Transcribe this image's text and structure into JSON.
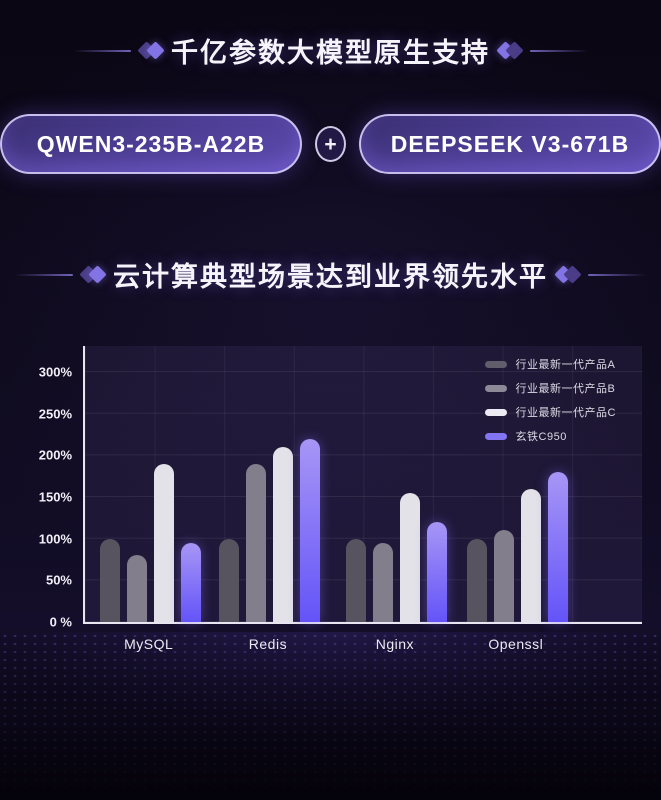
{
  "sections": {
    "models": {
      "title": "千亿参数大模型原生支持"
    },
    "cloud": {
      "title": "云计算典型场景达到业界领先水平"
    }
  },
  "badges": {
    "left": "QWEN3-235B-A22B",
    "plus": "+",
    "right": "DEEPSEEK V3-671B"
  },
  "colors": {
    "accent_purple": "#8374e6",
    "badge_border": "#ded6ff",
    "axis": "#e9e6f2",
    "bar_gray_a": "#57535f",
    "bar_gray_b": "#827e8b",
    "bar_white": "#e3e2e8",
    "bar_purple_top": "#a796f6",
    "bar_purple_bottom": "#6454f8"
  },
  "chart_data": {
    "type": "bar",
    "categories": [
      "MySQL",
      "Redis",
      "Nginx",
      "Openssl"
    ],
    "series": [
      {
        "name": "行业最新一代产品A",
        "swatch": "#615d6b",
        "color": "#57535f",
        "values": [
          100,
          100,
          100,
          100
        ]
      },
      {
        "name": "行业最新一代产品B",
        "swatch": "#8d8996",
        "color": "#827e8b",
        "values": [
          80,
          190,
          95,
          110
        ]
      },
      {
        "name": "行业最新一代产品C",
        "swatch": "#eceaf2",
        "color": "#e3e2e8",
        "values": [
          190,
          210,
          155,
          160
        ]
      },
      {
        "name": "玄铁C950",
        "swatch": "#8374f2",
        "color": "#7a68f2",
        "gradient": [
          "#a796f6",
          "#6454f8"
        ],
        "values": [
          95,
          220,
          120,
          180
        ]
      }
    ],
    "yticks": [
      {
        "value": 300,
        "label": "300%"
      },
      {
        "value": 250,
        "label": "250%"
      },
      {
        "value": 200,
        "label": "200%"
      },
      {
        "value": 150,
        "label": "150%"
      },
      {
        "value": 100,
        "label": "100%"
      },
      {
        "value": 50,
        "label": "50%"
      },
      {
        "value": 0,
        "label": "0 %"
      }
    ],
    "ylim": [
      0,
      331
    ],
    "grid": true,
    "legend_position": "top-right",
    "title": "",
    "xlabel": "",
    "ylabel": ""
  }
}
